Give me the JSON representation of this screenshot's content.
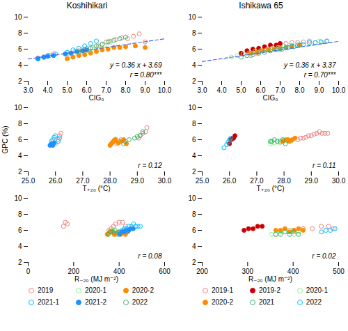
{
  "chart_data": [
    {
      "type": "scatter",
      "title": "Koshihikari",
      "xlabel": "CIG₀",
      "xlim": [
        3,
        10
      ],
      "xticks": [
        3,
        4,
        5,
        6,
        7,
        8,
        9,
        10
      ],
      "ylim": [
        2,
        10
      ],
      "yticks": [
        2,
        4,
        6,
        8,
        10
      ],
      "annotations": [
        "y = 0.36 x + 3.69",
        "r = 0.80***"
      ],
      "series": [
        {
          "name": "2019",
          "color": "#F08080",
          "marker": "circle-open",
          "x": [
            3.5,
            3.8,
            4.0,
            4.3,
            5.1,
            5.4,
            5.6,
            5.8,
            6.0,
            6.3,
            6.6,
            6.8,
            7.0,
            7.2,
            7.5,
            7.8,
            8.1,
            8.4,
            8.7,
            9.0
          ],
          "values": [
            4.9,
            5.0,
            5.2,
            5.4,
            5.4,
            5.7,
            5.8,
            6.0,
            6.1,
            6.2,
            6.4,
            6.6,
            6.9,
            7.0,
            7.2,
            7.4,
            7.3,
            7.6,
            7.9,
            6.9
          ]
        },
        {
          "name": "2020-1",
          "color": "#90EE90",
          "marker": "circle-open",
          "x": [
            5.1,
            5.4,
            5.7,
            6.0,
            6.3,
            6.6,
            6.9,
            7.2
          ],
          "values": [
            5.1,
            5.4,
            5.6,
            5.8,
            6.0,
            6.2,
            6.5,
            6.8
          ]
        },
        {
          "name": "2020-2",
          "color": "#FF8C00",
          "marker": "circle",
          "x": [
            5.0,
            5.3,
            5.6,
            5.9,
            6.2,
            6.5,
            6.8,
            7.1,
            7.4,
            7.7,
            8.0,
            8.5,
            9.0
          ],
          "values": [
            4.8,
            5.0,
            5.2,
            5.3,
            5.5,
            5.7,
            5.9,
            6.0,
            6.2,
            6.2,
            6.3,
            6.4,
            6.2
          ]
        },
        {
          "name": "2021-1",
          "color": "#00BFFF",
          "marker": "circle-open",
          "x": [
            3.5,
            3.8,
            4.1,
            4.4,
            5.0,
            5.3,
            5.6,
            5.9,
            6.2,
            6.5
          ],
          "values": [
            4.8,
            5.0,
            5.2,
            5.4,
            5.6,
            5.9,
            6.1,
            6.4,
            6.7,
            7.0
          ]
        },
        {
          "name": "2021-2",
          "color": "#1E90FF",
          "marker": "circle",
          "x": [
            3.5,
            3.8,
            4.0,
            4.3,
            4.9,
            5.2,
            5.5,
            5.8,
            6.0
          ],
          "values": [
            4.8,
            5.0,
            5.1,
            5.2,
            5.4,
            5.5,
            5.7,
            5.8,
            5.9
          ]
        },
        {
          "name": "2022",
          "color": "#3CB371",
          "marker": "circle-open",
          "x": [
            5.6,
            5.9,
            6.2,
            6.5,
            6.8,
            7.1,
            7.4,
            7.7,
            8.0
          ],
          "values": [
            5.6,
            5.9,
            6.1,
            6.4,
            6.6,
            6.9,
            7.1,
            7.3,
            7.5
          ]
        },
        {
          "type": "line",
          "color": "#4169E1",
          "line_style": "dashed",
          "x": [
            3,
            10
          ],
          "values": [
            4.77,
            7.29
          ]
        }
      ]
    },
    {
      "type": "scatter",
      "title": "Ishikawa 65",
      "xlabel": "CIG₀",
      "xlim": [
        3,
        10
      ],
      "xticks": [
        3,
        4,
        5,
        6,
        7,
        8,
        9,
        10
      ],
      "ylim": [
        2,
        10
      ],
      "yticks": [
        2,
        4,
        6,
        8,
        10
      ],
      "annotations": [
        "y = 0.36 x + 3.37",
        "r = 0.70***"
      ],
      "series": [
        {
          "name": "2019-1",
          "color": "#F08080",
          "marker": "circle-open",
          "x": [
            5.5,
            5.8,
            6.1,
            6.4,
            6.7,
            7.0,
            7.3,
            7.6,
            7.9,
            8.2,
            8.5,
            8.8,
            9.1,
            9.4
          ],
          "values": [
            5.2,
            5.5,
            5.8,
            6.0,
            6.2,
            6.5,
            6.7,
            6.8,
            6.8,
            6.9,
            7.0,
            6.8,
            6.9,
            7.0
          ]
        },
        {
          "name": "2019-2",
          "color": "#CC0000",
          "marker": "circle",
          "x": [
            5.0,
            5.3,
            5.6,
            5.9,
            6.2,
            6.5,
            6.8,
            7.0
          ],
          "values": [
            5.5,
            5.8,
            6.0,
            6.1,
            6.3,
            6.5,
            6.5,
            6.7
          ]
        },
        {
          "name": "2020-1",
          "color": "#90EE90",
          "marker": "circle-open",
          "x": [
            4.5,
            4.8,
            5.1,
            5.4,
            5.7,
            6.0,
            6.3,
            6.6,
            6.9,
            7.2,
            7.5,
            8.0,
            8.5,
            9.0
          ],
          "values": [
            5.0,
            5.2,
            5.4,
            5.5,
            5.7,
            5.8,
            5.9,
            6.1,
            6.2,
            6.4,
            6.5,
            6.5,
            6.8,
            7.0
          ]
        },
        {
          "name": "2020-2",
          "color": "#FF8C00",
          "marker": "circle",
          "x": [
            5.5,
            5.8,
            6.1,
            6.4,
            6.7,
            7.0,
            7.3,
            7.6,
            8.0
          ],
          "values": [
            5.5,
            5.6,
            5.8,
            5.9,
            6.0,
            6.1,
            6.2,
            6.4,
            6.5
          ]
        },
        {
          "name": "2021",
          "color": "#3CB371",
          "marker": "circle-open",
          "x": [
            5.0,
            5.3,
            5.6,
            5.9,
            6.2,
            6.5,
            6.8,
            7.1,
            7.4,
            7.7,
            8.0
          ],
          "values": [
            5.0,
            5.2,
            5.3,
            5.5,
            5.6,
            5.8,
            5.9,
            6.0,
            6.2,
            6.3,
            6.5
          ]
        },
        {
          "name": "2022",
          "color": "#00BFFF",
          "marker": "circle-open",
          "x": [
            7.0,
            7.3,
            7.6,
            7.9,
            8.2,
            8.5,
            8.8,
            9.1,
            9.4
          ],
          "values": [
            6.0,
            6.2,
            6.4,
            6.5,
            6.6,
            6.8,
            6.8,
            6.9,
            7.0
          ]
        },
        {
          "type": "line",
          "color": "#4169E1",
          "line_style": "dashed",
          "x": [
            3,
            10
          ],
          "values": [
            4.45,
            6.97
          ]
        }
      ]
    },
    {
      "type": "scatter",
      "xlabel": "T₊₂₀ (°C)",
      "ylabel": "GPC (%)",
      "xlim": [
        25,
        30
      ],
      "xticks": [
        25,
        26,
        27,
        28,
        29,
        30
      ],
      "ylim": [
        2,
        10
      ],
      "yticks": [
        2,
        4,
        6,
        8,
        10
      ],
      "annotations": [
        "r = 0.12"
      ],
      "series": [
        {
          "name": "2019",
          "color": "#F08080",
          "marker": "circle-open",
          "x": [
            26.0,
            26.1,
            26.15,
            26.2,
            28.25,
            28.3,
            28.4,
            29.05,
            29.1,
            29.2,
            29.3,
            29.35
          ],
          "values": [
            5.5,
            6.0,
            6.5,
            6.8,
            5.5,
            5.8,
            6.0,
            6.2,
            6.5,
            6.8,
            7.0,
            7.5
          ]
        },
        {
          "name": "2020-1",
          "color": "#90EE90",
          "marker": "circle-open",
          "x": [
            28.05,
            28.1,
            28.15,
            28.2
          ],
          "values": [
            5.5,
            5.7,
            5.9,
            6.1
          ]
        },
        {
          "name": "2020-2",
          "color": "#FF8C00",
          "marker": "circle",
          "x": [
            28.0,
            28.05,
            28.1,
            28.15,
            28.2,
            28.3,
            28.4,
            28.5,
            28.6
          ],
          "values": [
            5.3,
            5.5,
            5.7,
            5.9,
            6.0,
            5.6,
            5.8,
            6.0,
            5.5
          ]
        },
        {
          "name": "2021-1",
          "color": "#00BFFF",
          "marker": "circle-open",
          "x": [
            25.85,
            25.9,
            25.95,
            26.0,
            26.1,
            26.15
          ],
          "values": [
            5.8,
            6.0,
            6.3,
            6.5,
            5.8,
            6.2
          ]
        },
        {
          "name": "2021-2",
          "color": "#1E90FF",
          "marker": "circle",
          "x": [
            25.8,
            25.85,
            25.9,
            25.95
          ],
          "values": [
            5.3,
            5.5,
            5.3,
            5.6
          ]
        },
        {
          "name": "2022",
          "color": "#3CB371",
          "marker": "circle-open",
          "x": [
            28.5,
            28.55,
            28.7,
            28.9,
            29.0,
            29.1,
            29.2
          ],
          "values": [
            5.5,
            5.8,
            6.0,
            6.2,
            6.4,
            6.5,
            7.0
          ]
        }
      ]
    },
    {
      "type": "scatter",
      "xlabel": "T₊₂₀ (°C)",
      "xlim": [
        25,
        30
      ],
      "xticks": [
        25,
        26,
        27,
        28,
        29,
        30
      ],
      "ylim": [
        2,
        10
      ],
      "yticks": [
        2,
        4,
        6,
        8,
        10
      ],
      "annotations": [
        "r = 0.11"
      ],
      "series": [
        {
          "name": "2019-1",
          "color": "#F08080",
          "marker": "circle-open",
          "x": [
            28.5,
            28.6,
            28.7,
            28.8,
            28.9,
            29.0,
            29.1,
            29.2,
            29.3,
            29.4,
            29.5,
            29.6
          ],
          "values": [
            6.0,
            6.2,
            6.2,
            6.3,
            6.5,
            6.5,
            6.7,
            6.8,
            7.0,
            6.8,
            6.8,
            6.8
          ]
        },
        {
          "name": "2019-2",
          "color": "#CC0000",
          "marker": "circle",
          "x": [
            26.0,
            26.05,
            26.1,
            26.15,
            26.2
          ],
          "values": [
            5.5,
            6.0,
            6.1,
            6.2,
            6.5
          ]
        },
        {
          "name": "2020-1",
          "color": "#90EE90",
          "marker": "circle-open",
          "x": [
            27.5,
            27.55,
            27.65,
            27.75,
            27.85,
            27.95,
            28.05,
            28.15,
            28.25
          ],
          "values": [
            5.5,
            5.7,
            5.6,
            5.8,
            5.6,
            5.8,
            6.0,
            5.8,
            5.8
          ]
        },
        {
          "name": "2020-2",
          "color": "#FF8C00",
          "marker": "circle",
          "x": [
            27.95,
            28.0,
            28.1,
            28.15,
            28.2,
            28.3,
            28.4
          ],
          "values": [
            5.8,
            5.9,
            6.0,
            6.0,
            5.8,
            6.0,
            6.2
          ]
        },
        {
          "name": "2021",
          "color": "#3CB371",
          "marker": "circle-open",
          "x": [
            27.5,
            27.55,
            27.65,
            27.75,
            27.85,
            27.95,
            28.05
          ],
          "values": [
            5.8,
            5.8,
            6.0,
            5.8,
            5.8,
            6.0,
            5.5
          ]
        },
        {
          "name": "2022",
          "color": "#00BFFF",
          "marker": "circle-open",
          "x": [
            25.8,
            25.9,
            25.95,
            26.0,
            26.05
          ],
          "values": [
            5.0,
            5.4,
            5.7,
            6.0,
            6.2
          ]
        }
      ]
    },
    {
      "type": "scatter",
      "xlabel": "R₋₂₀ (MJ m⁻²)",
      "legend": "bottom",
      "xlim": [
        0,
        600
      ],
      "xticks": [
        0,
        200,
        400,
        600
      ],
      "ylim": [
        2,
        10
      ],
      "yticks": [
        2,
        4,
        6,
        8,
        10
      ],
      "annotations": [
        "r = 0.08"
      ],
      "series": [
        {
          "name": "2019",
          "color": "#F08080",
          "marker": "circle-open",
          "x": [
            155,
            163,
            172,
            355,
            365,
            375,
            385,
            400,
            415,
            428
          ],
          "values": [
            6.5,
            7.0,
            6.8,
            6.0,
            6.2,
            6.5,
            6.8,
            7.0,
            7.0,
            6.5
          ]
        },
        {
          "name": "2020-1",
          "color": "#90EE90",
          "marker": "circle-open",
          "x": [
            352,
            362,
            372,
            382
          ],
          "values": [
            5.5,
            5.8,
            6.0,
            5.5
          ]
        },
        {
          "name": "2020-2",
          "color": "#FF8C00",
          "marker": "circle",
          "x": [
            348,
            358,
            368,
            378,
            388,
            398,
            408,
            418,
            428,
            438
          ],
          "values": [
            5.5,
            5.8,
            5.9,
            5.5,
            5.7,
            5.8,
            5.5,
            5.9,
            5.5,
            5.8
          ]
        },
        {
          "name": "2021-1",
          "color": "#00BFFF",
          "marker": "circle-open",
          "x": [
            403,
            413,
            423,
            433,
            443,
            453,
            463,
            473,
            483,
            493
          ],
          "values": [
            5.8,
            6.0,
            6.2,
            6.2,
            6.5,
            6.5,
            6.8,
            6.5,
            6.5,
            6.5
          ]
        },
        {
          "name": "2021-2",
          "color": "#1E90FF",
          "marker": "circle",
          "x": [
            402,
            412,
            422,
            432,
            442,
            452,
            462
          ],
          "values": [
            5.5,
            5.8,
            5.8,
            6.0,
            6.0,
            6.2,
            6.2
          ]
        },
        {
          "name": "2022",
          "color": "#3CB371",
          "marker": "circle-open",
          "x": [
            352,
            362,
            372,
            382,
            392
          ],
          "values": [
            5.5,
            5.8,
            5.8,
            6.0,
            5.5
          ]
        }
      ]
    },
    {
      "type": "scatter",
      "xlabel": "R₋₂₀ (MJ m⁻²)",
      "legend": "bottom",
      "xlim": [
        200,
        500
      ],
      "xticks": [
        200,
        300,
        400,
        500
      ],
      "ylim": [
        2,
        10
      ],
      "yticks": [
        2,
        4,
        6,
        8,
        10
      ],
      "annotations": [
        "r = 0.02"
      ],
      "series": [
        {
          "name": "2019-1",
          "color": "#F08080",
          "marker": "circle-open",
          "x": [
            392,
            402,
            422,
            442,
            462,
            478,
            488
          ],
          "values": [
            6.0,
            6.0,
            6.2,
            6.2,
            6.5,
            6.5,
            6.2
          ]
        },
        {
          "name": "2019-2",
          "color": "#CC0000",
          "marker": "circle",
          "x": [
            292,
            302,
            312,
            322,
            332
          ],
          "values": [
            6.0,
            6.2,
            6.2,
            6.5,
            6.5
          ]
        },
        {
          "name": "2020-1",
          "color": "#90EE90",
          "marker": "circle-open",
          "x": [
            352,
            362,
            372,
            382,
            392,
            402,
            412
          ],
          "values": [
            5.5,
            5.5,
            5.8,
            5.8,
            6.0,
            5.5,
            5.8
          ]
        },
        {
          "name": "2020-2",
          "color": "#FF8C00",
          "marker": "circle",
          "x": [
            362,
            372,
            382,
            392,
            402,
            412,
            422
          ],
          "values": [
            6.0,
            6.0,
            6.2,
            5.8,
            6.0,
            6.2,
            6.0
          ]
        },
        {
          "name": "2021",
          "color": "#3CB371",
          "marker": "circle-open",
          "x": [
            362,
            372,
            382,
            392,
            402,
            412
          ],
          "values": [
            5.5,
            5.5,
            5.8,
            5.5,
            5.8,
            5.5
          ]
        },
        {
          "name": "2022",
          "color": "#00BFFF",
          "marker": "circle-open",
          "x": [
            462,
            472,
            482,
            492
          ],
          "values": [
            5.8,
            6.0,
            6.0,
            6.2
          ]
        }
      ]
    }
  ]
}
